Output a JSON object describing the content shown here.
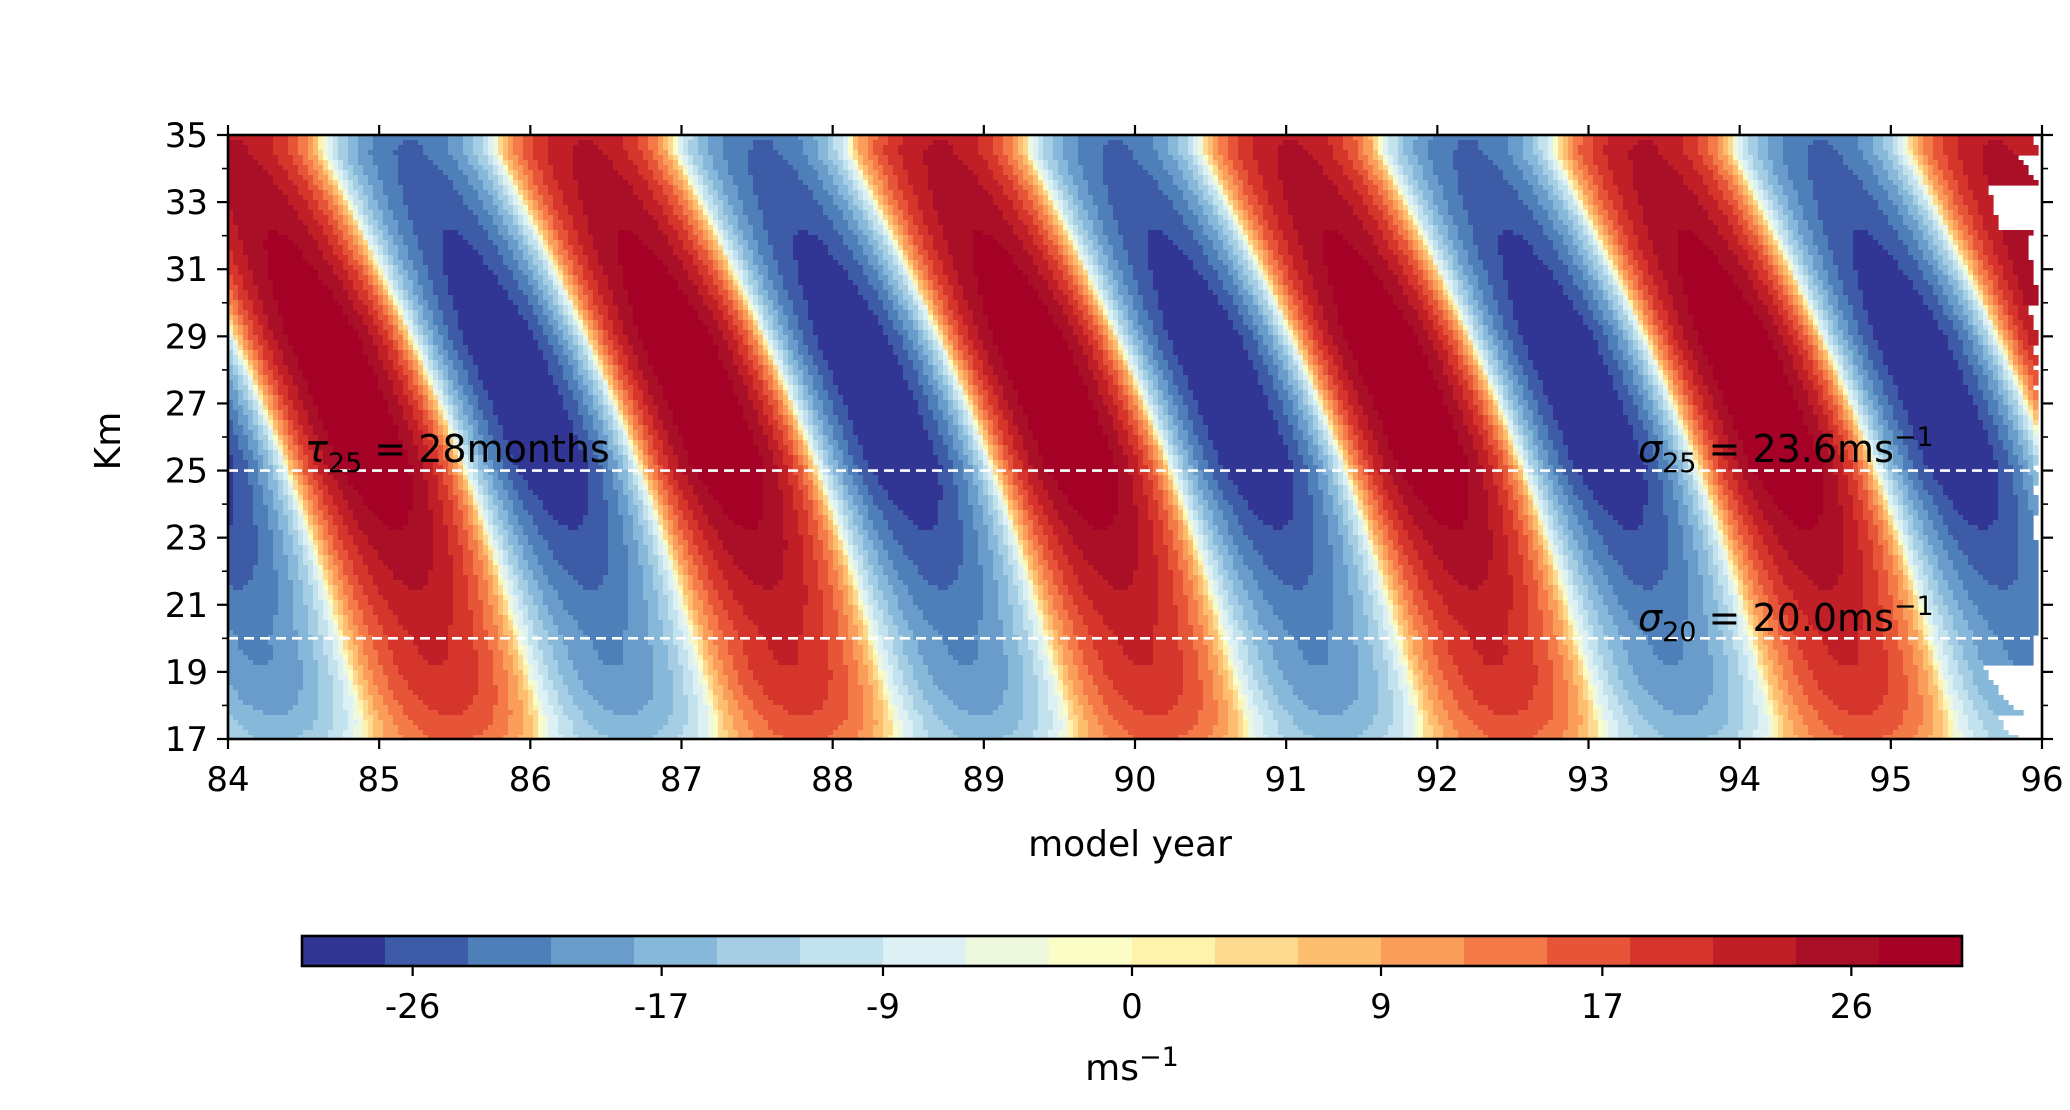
{
  "chart_data": {
    "type": "heatmap",
    "subtype": "filled-contour",
    "title": "",
    "xlabel": "model year",
    "ylabel": "Km",
    "x_range": [
      84,
      96
    ],
    "y_range": [
      17,
      35
    ],
    "x_ticks": [
      84,
      85,
      86,
      87,
      88,
      89,
      90,
      91,
      92,
      93,
      94,
      95,
      96
    ],
    "x_tick_labels": [
      "84",
      "85",
      "86",
      "87",
      "88",
      "89",
      "90",
      "91",
      "92",
      "93",
      "94",
      "95",
      "96"
    ],
    "y_ticks": [
      17,
      19,
      21,
      23,
      25,
      27,
      29,
      31,
      33,
      35
    ],
    "y_tick_labels": [
      "17",
      "19",
      "21",
      "23",
      "25",
      "27",
      "29",
      "31",
      "33",
      "35"
    ],
    "y_minor_ticks": [
      18,
      20,
      22,
      24,
      26,
      28,
      30,
      32,
      34
    ],
    "field": {
      "description_values": "descending oscillating zonal wind",
      "period_months": 28,
      "amplitude_25km": 23.6,
      "amplitude_20km": 20.0
    },
    "reference_lines": [
      {
        "y": 25,
        "style": "dashed",
        "color": "#ffffff"
      },
      {
        "y": 20,
        "style": "dashed",
        "color": "#ffffff"
      }
    ],
    "annotations": {
      "period": {
        "sym": "τ",
        "sub": "25",
        "rest": " = 28months"
      },
      "amp25": {
        "sym": "σ",
        "sub": "25",
        "rest": " = 23.6ms",
        "sup": "−1"
      },
      "amp20": {
        "sym": "σ",
        "sub": "20",
        "rest": " = 20.0ms",
        "sup": "−1"
      }
    },
    "colorbar": {
      "label_base": "ms",
      "label_sup": "−1",
      "range": [
        -30,
        30
      ],
      "levels": 20,
      "ticks": [
        -26,
        -17,
        -9,
        0,
        9,
        17,
        26
      ],
      "tick_labels": [
        "-26",
        "-17",
        "-9",
        "0",
        "9",
        "17",
        "26"
      ],
      "colors": [
        "#313695",
        "#3e5ba7",
        "#4f7fb9",
        "#6a9ccb",
        "#86b8d9",
        "#a5cde4",
        "#c2e2ee",
        "#ddf0f4",
        "#eef8df",
        "#fbfdc7",
        "#fff2ac",
        "#fed990",
        "#fdbe70",
        "#fa9d5a",
        "#f47b48",
        "#e75539",
        "#d6352b",
        "#c01f27",
        "#a90f26",
        "#a50026"
      ]
    }
  }
}
